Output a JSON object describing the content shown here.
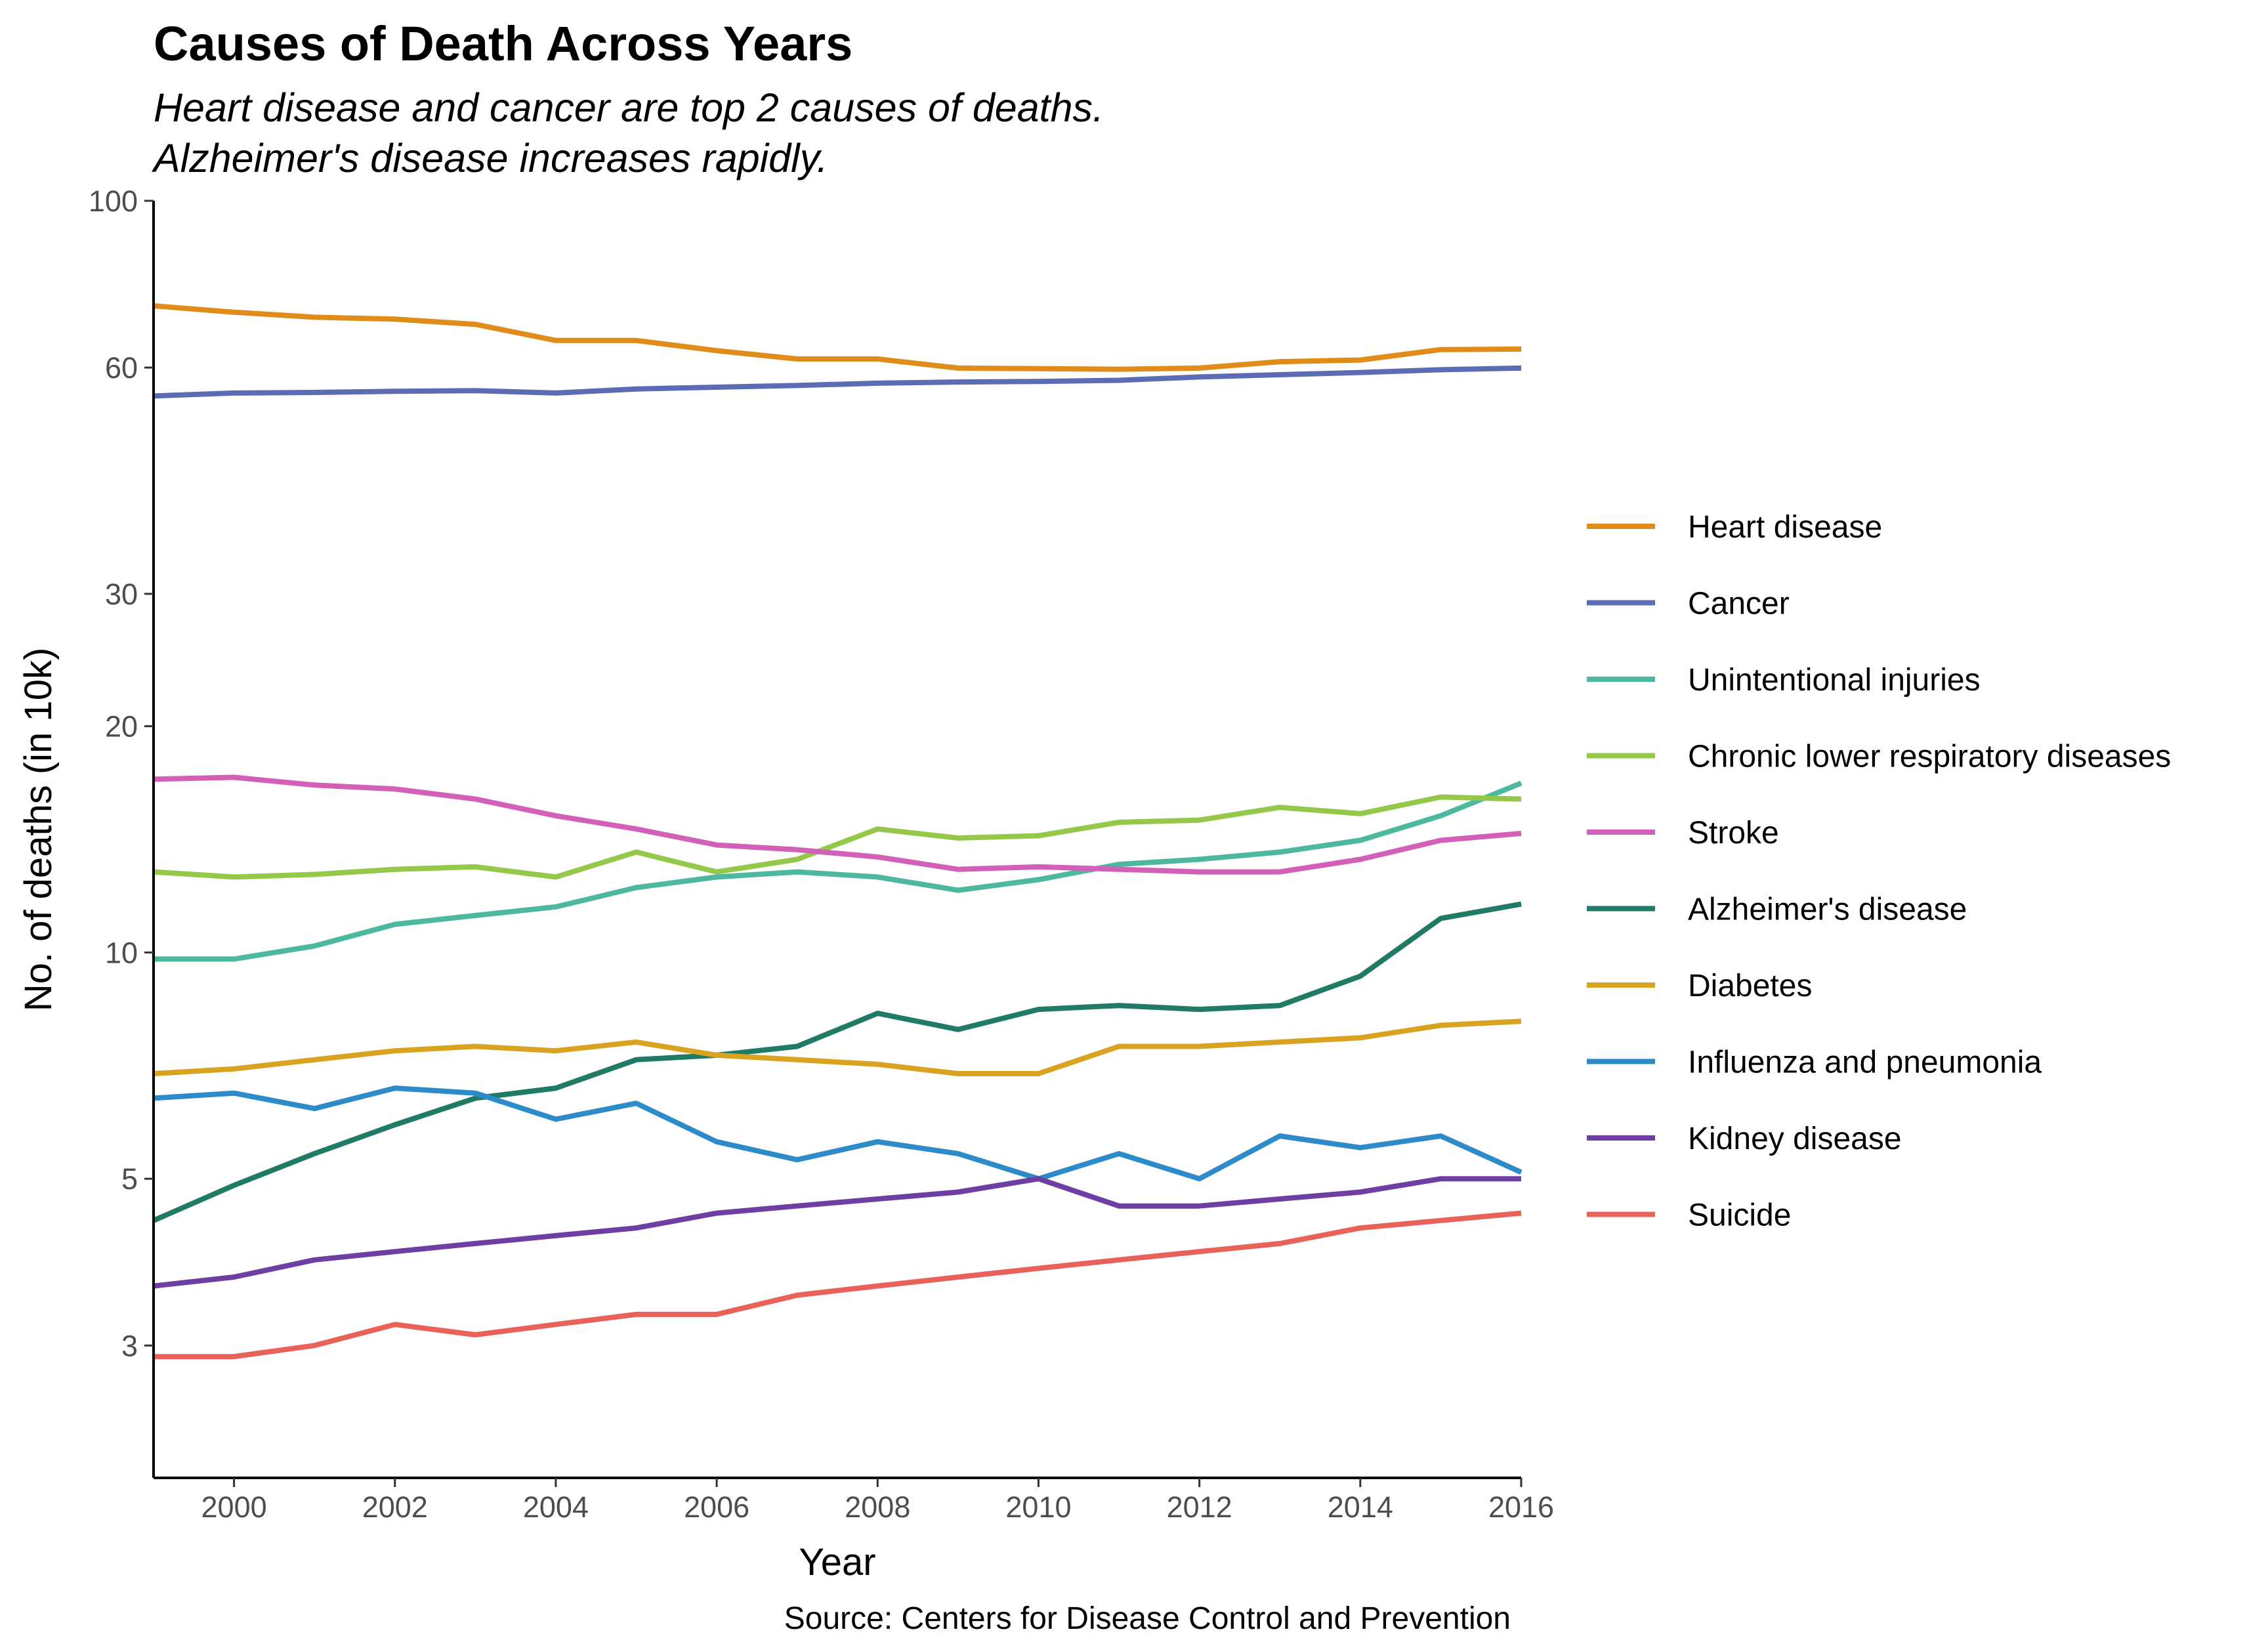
{
  "chart_data": {
    "type": "line",
    "title": "Causes of Death Across Years",
    "subtitle_lines": [
      "Heart disease and cancer are top 2 causes of deaths.",
      "Alzheimer's disease increases rapidly."
    ],
    "xlabel": "Year",
    "ylabel": "No. of deaths (in 10k)",
    "caption": "Source: Centers for Disease Control and Prevention",
    "y_scale": "log10",
    "xlim": [
      1999,
      2016
    ],
    "ylim": [
      2.0,
      100
    ],
    "x_ticks": [
      2000,
      2002,
      2004,
      2006,
      2008,
      2010,
      2012,
      2014,
      2016
    ],
    "y_ticks": [
      3,
      5,
      10,
      20,
      30,
      60,
      100
    ],
    "grid": false,
    "legend_position": "right",
    "x": [
      1999,
      2000,
      2001,
      2002,
      2003,
      2004,
      2005,
      2006,
      2007,
      2008,
      2009,
      2010,
      2011,
      2012,
      2013,
      2014,
      2015,
      2016
    ],
    "series": [
      {
        "name": "Heart disease",
        "color": "#E08B1A",
        "values": [
          72.5,
          71.1,
          70.0,
          69.6,
          68.5,
          65.2,
          65.2,
          63.2,
          61.6,
          61.6,
          59.9,
          59.8,
          59.7,
          59.9,
          61.1,
          61.4,
          63.4,
          63.5
        ]
      },
      {
        "name": "Cancer",
        "color": "#5B6BB5",
        "values": [
          55.0,
          55.5,
          55.6,
          55.8,
          55.9,
          55.5,
          56.2,
          56.5,
          56.8,
          57.2,
          57.4,
          57.5,
          57.7,
          58.3,
          58.7,
          59.1,
          59.6,
          59.9
        ]
      },
      {
        "name": "Unintentional injuries",
        "color": "#4DB8A0",
        "values": [
          9.8,
          9.8,
          10.2,
          10.9,
          11.2,
          11.5,
          12.2,
          12.6,
          12.8,
          12.6,
          12.1,
          12.5,
          13.1,
          13.3,
          13.6,
          14.1,
          15.2,
          16.8
        ]
      },
      {
        "name": "Chronic lower respiratory diseases",
        "color": "#95C84A",
        "values": [
          12.8,
          12.6,
          12.7,
          12.9,
          13.0,
          12.6,
          13.6,
          12.8,
          13.3,
          14.6,
          14.2,
          14.3,
          14.9,
          15.0,
          15.6,
          15.3,
          16.1,
          16.0
        ]
      },
      {
        "name": "Stroke",
        "color": "#D260B7",
        "values": [
          17.0,
          17.1,
          16.7,
          16.5,
          16.0,
          15.2,
          14.6,
          13.9,
          13.7,
          13.4,
          12.9,
          13.0,
          12.9,
          12.8,
          12.8,
          13.3,
          14.1,
          14.4
        ]
      },
      {
        "name": "Alzheimer's disease",
        "color": "#1F7A66",
        "values": [
          4.4,
          4.9,
          5.4,
          5.9,
          6.4,
          6.6,
          7.2,
          7.3,
          7.5,
          8.3,
          7.9,
          8.4,
          8.5,
          8.4,
          8.5,
          9.3,
          11.1,
          11.6
        ]
      },
      {
        "name": "Diabetes",
        "color": "#D9A321",
        "values": [
          6.9,
          7.0,
          7.2,
          7.4,
          7.5,
          7.4,
          7.6,
          7.3,
          7.2,
          7.1,
          6.9,
          6.9,
          7.5,
          7.5,
          7.6,
          7.7,
          8.0,
          8.1
        ]
      },
      {
        "name": "Influenza and pneumonia",
        "color": "#2D8BC9",
        "values": [
          6.4,
          6.5,
          6.2,
          6.6,
          6.5,
          6.0,
          6.3,
          5.6,
          5.3,
          5.6,
          5.4,
          5.0,
          5.4,
          5.0,
          5.7,
          5.5,
          5.7,
          5.1
        ]
      },
      {
        "name": "Kidney disease",
        "color": "#6E3FA3",
        "values": [
          3.6,
          3.7,
          3.9,
          4.0,
          4.1,
          4.2,
          4.3,
          4.5,
          4.6,
          4.7,
          4.8,
          5.0,
          4.6,
          4.6,
          4.7,
          4.8,
          5.0,
          5.0
        ]
      },
      {
        "name": "Suicide",
        "color": "#E8625A",
        "values": [
          2.9,
          2.9,
          3.0,
          3.2,
          3.1,
          3.2,
          3.3,
          3.3,
          3.5,
          3.6,
          3.7,
          3.8,
          3.9,
          4.0,
          4.1,
          4.3,
          4.4,
          4.5
        ]
      }
    ]
  }
}
